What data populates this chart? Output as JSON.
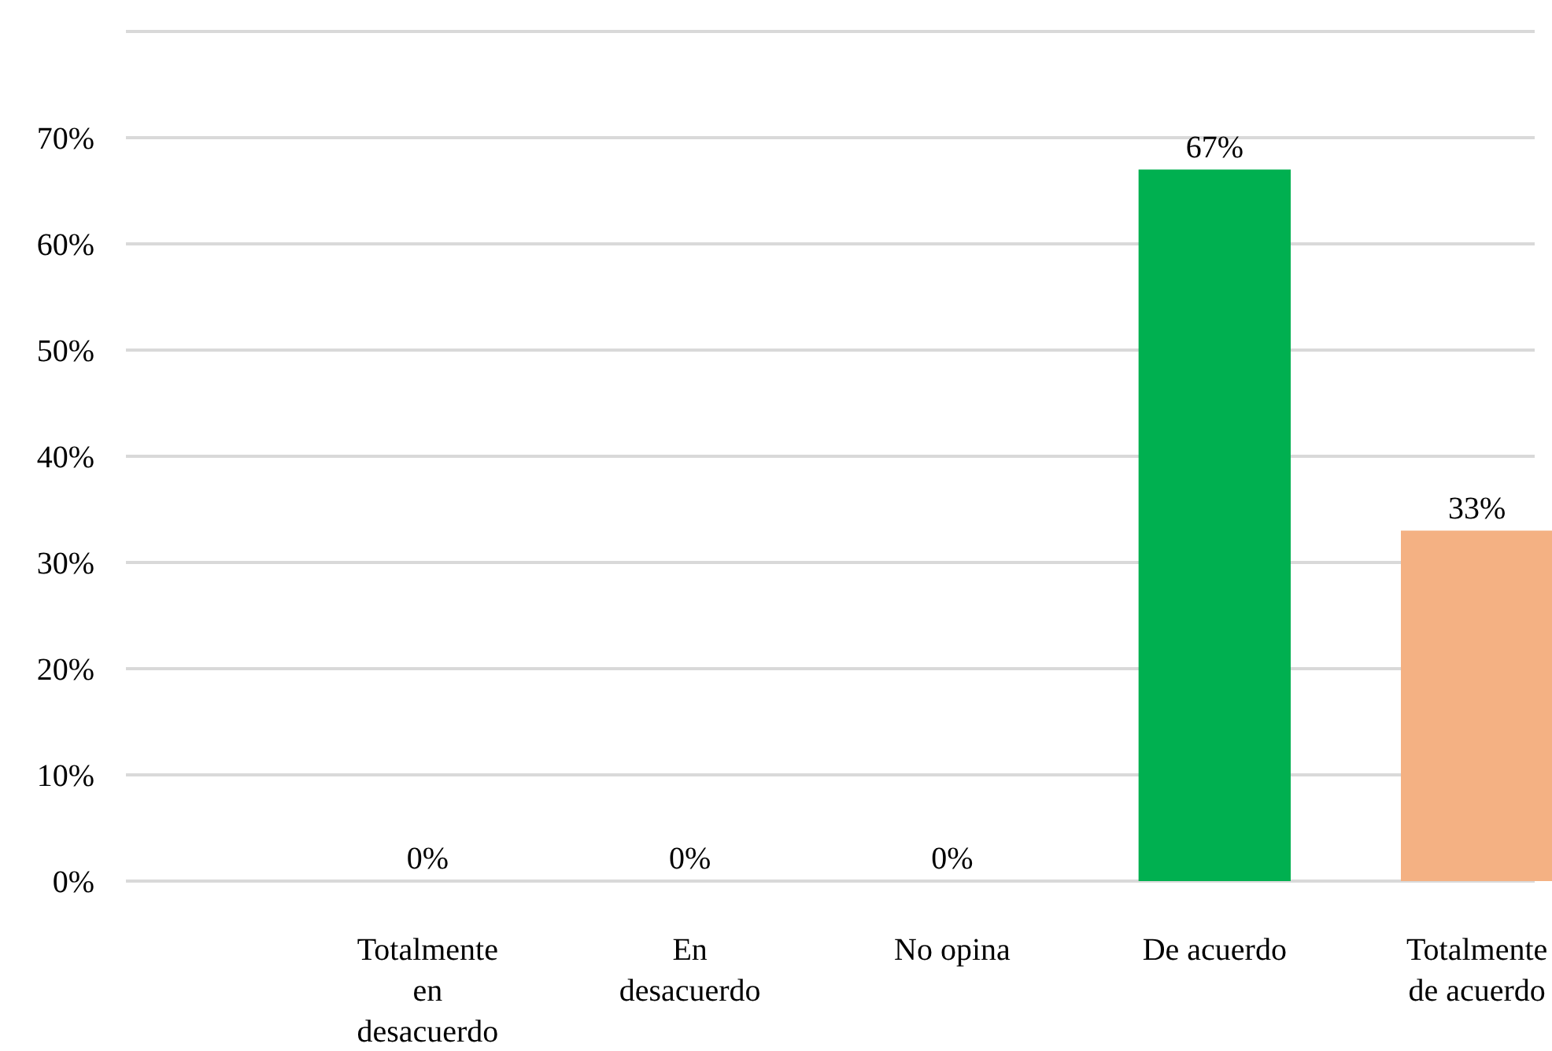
{
  "chart_data": {
    "type": "bar",
    "categories": [
      "Totalmente en desacuerdo",
      "En desacuerdo",
      "No opina",
      "De acuerdo",
      "Totalmente de acuerdo"
    ],
    "values": [
      0,
      0,
      0,
      67,
      33
    ],
    "colors": [
      "#c0a44c",
      "#595553",
      "#4477a6",
      "#00b050",
      "#f4b183"
    ],
    "ylim": [
      0,
      80
    ],
    "yticks": [
      {
        "value": 0,
        "label": "0%"
      },
      {
        "value": 10,
        "label": "10%"
      },
      {
        "value": 20,
        "label": "20%"
      },
      {
        "value": 30,
        "label": "30%"
      },
      {
        "value": 40,
        "label": "40%"
      },
      {
        "value": 50,
        "label": "50%"
      },
      {
        "value": 60,
        "label": "60%"
      },
      {
        "value": 70,
        "label": "70%"
      },
      {
        "value": 80,
        "label": null
      }
    ],
    "value_labels": [
      "0%",
      "0%",
      "0%",
      "67%",
      "33%"
    ],
    "grid": "y"
  }
}
